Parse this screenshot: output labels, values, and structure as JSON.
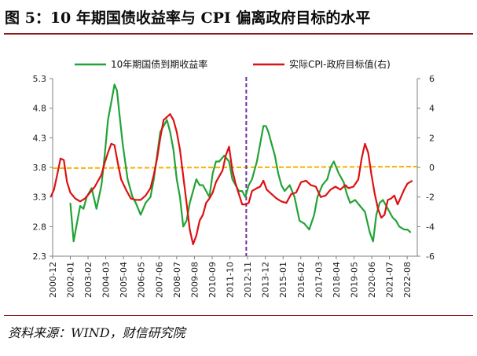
{
  "header": {
    "title": "图 5：10 年期国债收益率与 CPI 偏离政府目标的水平"
  },
  "footer": {
    "source": "资料来源：WIND，财信研究院"
  },
  "chart_data": {
    "type": "line",
    "legend_position": "top",
    "x_categories": [
      "2000-12",
      "2002-01",
      "2003-02",
      "2004-03",
      "2005-04",
      "2006-05",
      "2007-06",
      "2008-07",
      "2009-08",
      "2010-09",
      "2011-10",
      "2012-11",
      "2013-12",
      "2015-01",
      "2016-02",
      "2017-03",
      "2018-04",
      "2019-05",
      "2020-06",
      "2021-07",
      "2022-08"
    ],
    "y_left": {
      "ticks": [
        "2.3",
        "2.8",
        "3.3",
        "3.8",
        "4.3",
        "4.8",
        "5.3"
      ],
      "range": [
        2.3,
        5.3
      ]
    },
    "y_right": {
      "ticks": [
        "-6",
        "-4",
        "-2",
        "0",
        "2",
        "4",
        "6"
      ],
      "range": [
        -6,
        6
      ]
    },
    "colors": {
      "yield": "#22a336",
      "cpi": "#dd1111",
      "target_ref": "#f5b000",
      "divider": "#7030a0"
    },
    "divider_at": 2012.75,
    "reference_right_value": 0,
    "series": [
      {
        "name": "10年期国债到期收益率",
        "axis": "left",
        "points": [
          [
            2002.0,
            3.2
          ],
          [
            2002.2,
            2.55
          ],
          [
            2002.4,
            2.85
          ],
          [
            2002.6,
            3.15
          ],
          [
            2002.8,
            3.1
          ],
          [
            2003.0,
            3.3
          ],
          [
            2003.3,
            3.45
          ],
          [
            2003.6,
            3.1
          ],
          [
            2003.9,
            3.5
          ],
          [
            2004.1,
            4.0
          ],
          [
            2004.3,
            4.6
          ],
          [
            2004.5,
            4.9
          ],
          [
            2004.7,
            5.2
          ],
          [
            2004.85,
            5.1
          ],
          [
            2005.0,
            4.7
          ],
          [
            2005.2,
            4.2
          ],
          [
            2005.5,
            3.6
          ],
          [
            2005.8,
            3.3
          ],
          [
            2006.0,
            3.2
          ],
          [
            2006.3,
            3.0
          ],
          [
            2006.6,
            3.2
          ],
          [
            2006.9,
            3.3
          ],
          [
            2007.1,
            3.6
          ],
          [
            2007.3,
            4.0
          ],
          [
            2007.5,
            4.4
          ],
          [
            2007.7,
            4.5
          ],
          [
            2007.9,
            4.6
          ],
          [
            2008.1,
            4.4
          ],
          [
            2008.3,
            4.1
          ],
          [
            2008.5,
            3.6
          ],
          [
            2008.7,
            3.3
          ],
          [
            2008.9,
            2.8
          ],
          [
            2009.1,
            2.9
          ],
          [
            2009.3,
            3.2
          ],
          [
            2009.5,
            3.4
          ],
          [
            2009.7,
            3.6
          ],
          [
            2009.9,
            3.5
          ],
          [
            2010.1,
            3.5
          ],
          [
            2010.3,
            3.4
          ],
          [
            2010.5,
            3.3
          ],
          [
            2010.7,
            3.7
          ],
          [
            2010.9,
            3.9
          ],
          [
            2011.1,
            3.9
          ],
          [
            2011.4,
            4.0
          ],
          [
            2011.7,
            3.9
          ],
          [
            2011.9,
            3.6
          ],
          [
            2012.1,
            3.5
          ],
          [
            2012.3,
            3.4
          ],
          [
            2012.5,
            3.4
          ],
          [
            2012.7,
            3.3
          ],
          [
            2012.9,
            3.5
          ],
          [
            2013.1,
            3.6
          ],
          [
            2013.4,
            3.9
          ],
          [
            2013.6,
            4.2
          ],
          [
            2013.8,
            4.5
          ],
          [
            2013.95,
            4.5
          ],
          [
            2014.1,
            4.4
          ],
          [
            2014.3,
            4.2
          ],
          [
            2014.5,
            4.0
          ],
          [
            2014.7,
            3.7
          ],
          [
            2014.9,
            3.5
          ],
          [
            2015.1,
            3.4
          ],
          [
            2015.4,
            3.5
          ],
          [
            2015.7,
            3.3
          ],
          [
            2016.0,
            2.9
          ],
          [
            2016.3,
            2.85
          ],
          [
            2016.6,
            2.75
          ],
          [
            2016.9,
            3.0
          ],
          [
            2017.1,
            3.3
          ],
          [
            2017.4,
            3.5
          ],
          [
            2017.7,
            3.6
          ],
          [
            2017.9,
            3.8
          ],
          [
            2018.1,
            3.9
          ],
          [
            2018.4,
            3.7
          ],
          [
            2018.7,
            3.55
          ],
          [
            2018.9,
            3.35
          ],
          [
            2019.1,
            3.2
          ],
          [
            2019.4,
            3.25
          ],
          [
            2019.7,
            3.15
          ],
          [
            2020.0,
            3.05
          ],
          [
            2020.3,
            2.7
          ],
          [
            2020.5,
            2.55
          ],
          [
            2020.7,
            3.0
          ],
          [
            2020.9,
            3.2
          ],
          [
            2021.1,
            3.25
          ],
          [
            2021.4,
            3.1
          ],
          [
            2021.7,
            2.95
          ],
          [
            2021.9,
            2.9
          ],
          [
            2022.1,
            2.8
          ],
          [
            2022.4,
            2.75
          ],
          [
            2022.6,
            2.75
          ],
          [
            2022.8,
            2.7
          ]
        ]
      },
      {
        "name": "实际CPI-政府目标值(右)",
        "axis": "right",
        "points": [
          [
            2000.8,
            -2.0
          ],
          [
            2001.0,
            -1.5
          ],
          [
            2001.2,
            -0.5
          ],
          [
            2001.4,
            0.6
          ],
          [
            2001.6,
            0.5
          ],
          [
            2001.8,
            -1.0
          ],
          [
            2002.0,
            -1.7
          ],
          [
            2002.3,
            -2.1
          ],
          [
            2002.6,
            -2.3
          ],
          [
            2002.9,
            -2.1
          ],
          [
            2003.2,
            -1.7
          ],
          [
            2003.5,
            -1.3
          ],
          [
            2003.7,
            -0.9
          ],
          [
            2003.9,
            -0.5
          ],
          [
            2004.1,
            0.3
          ],
          [
            2004.3,
            1.0
          ],
          [
            2004.5,
            1.6
          ],
          [
            2004.7,
            1.5
          ],
          [
            2004.9,
            0.3
          ],
          [
            2005.1,
            -0.8
          ],
          [
            2005.4,
            -1.5
          ],
          [
            2005.7,
            -2.1
          ],
          [
            2006.0,
            -2.2
          ],
          [
            2006.3,
            -2.2
          ],
          [
            2006.6,
            -1.9
          ],
          [
            2006.9,
            -1.4
          ],
          [
            2007.1,
            -0.5
          ],
          [
            2007.3,
            0.6
          ],
          [
            2007.5,
            2.0
          ],
          [
            2007.7,
            3.2
          ],
          [
            2007.9,
            3.4
          ],
          [
            2008.1,
            3.6
          ],
          [
            2008.3,
            3.2
          ],
          [
            2008.5,
            2.4
          ],
          [
            2008.7,
            1.2
          ],
          [
            2008.9,
            -0.6
          ],
          [
            2009.1,
            -2.4
          ],
          [
            2009.3,
            -4.2
          ],
          [
            2009.5,
            -5.2
          ],
          [
            2009.7,
            -4.6
          ],
          [
            2009.9,
            -3.6
          ],
          [
            2010.1,
            -3.2
          ],
          [
            2010.3,
            -2.4
          ],
          [
            2010.5,
            -2.1
          ],
          [
            2010.7,
            -1.7
          ],
          [
            2010.9,
            -1.0
          ],
          [
            2011.1,
            -0.6
          ],
          [
            2011.3,
            -0.2
          ],
          [
            2011.5,
            0.8
          ],
          [
            2011.7,
            1.4
          ],
          [
            2011.9,
            -0.2
          ],
          [
            2012.1,
            -1.1
          ],
          [
            2012.3,
            -1.8
          ],
          [
            2012.5,
            -2.5
          ],
          [
            2012.7,
            -2.5
          ],
          [
            2012.9,
            -2.4
          ],
          [
            2013.1,
            -1.6
          ],
          [
            2013.4,
            -1.4
          ],
          [
            2013.6,
            -1.3
          ],
          [
            2013.8,
            -0.9
          ],
          [
            2014.0,
            -1.5
          ],
          [
            2014.3,
            -1.8
          ],
          [
            2014.6,
            -2.1
          ],
          [
            2014.9,
            -2.3
          ],
          [
            2015.2,
            -2.4
          ],
          [
            2015.5,
            -1.8
          ],
          [
            2015.8,
            -1.7
          ],
          [
            2016.1,
            -1.0
          ],
          [
            2016.4,
            -0.9
          ],
          [
            2016.7,
            -1.2
          ],
          [
            2017.0,
            -1.3
          ],
          [
            2017.3,
            -2.0
          ],
          [
            2017.6,
            -1.9
          ],
          [
            2017.9,
            -1.5
          ],
          [
            2018.2,
            -1.3
          ],
          [
            2018.5,
            -1.5
          ],
          [
            2018.8,
            -1.2
          ],
          [
            2019.0,
            -1.4
          ],
          [
            2019.3,
            -1.3
          ],
          [
            2019.6,
            -0.8
          ],
          [
            2019.8,
            0.6
          ],
          [
            2020.0,
            1.6
          ],
          [
            2020.2,
            1.0
          ],
          [
            2020.4,
            -0.5
          ],
          [
            2020.6,
            -1.8
          ],
          [
            2020.8,
            -2.8
          ],
          [
            2021.0,
            -3.4
          ],
          [
            2021.2,
            -3.2
          ],
          [
            2021.4,
            -2.2
          ],
          [
            2021.6,
            -2.1
          ],
          [
            2021.8,
            -1.9
          ],
          [
            2022.0,
            -2.5
          ],
          [
            2022.2,
            -2.0
          ],
          [
            2022.4,
            -1.5
          ],
          [
            2022.6,
            -1.1
          ],
          [
            2022.9,
            -0.9
          ]
        ]
      }
    ]
  }
}
